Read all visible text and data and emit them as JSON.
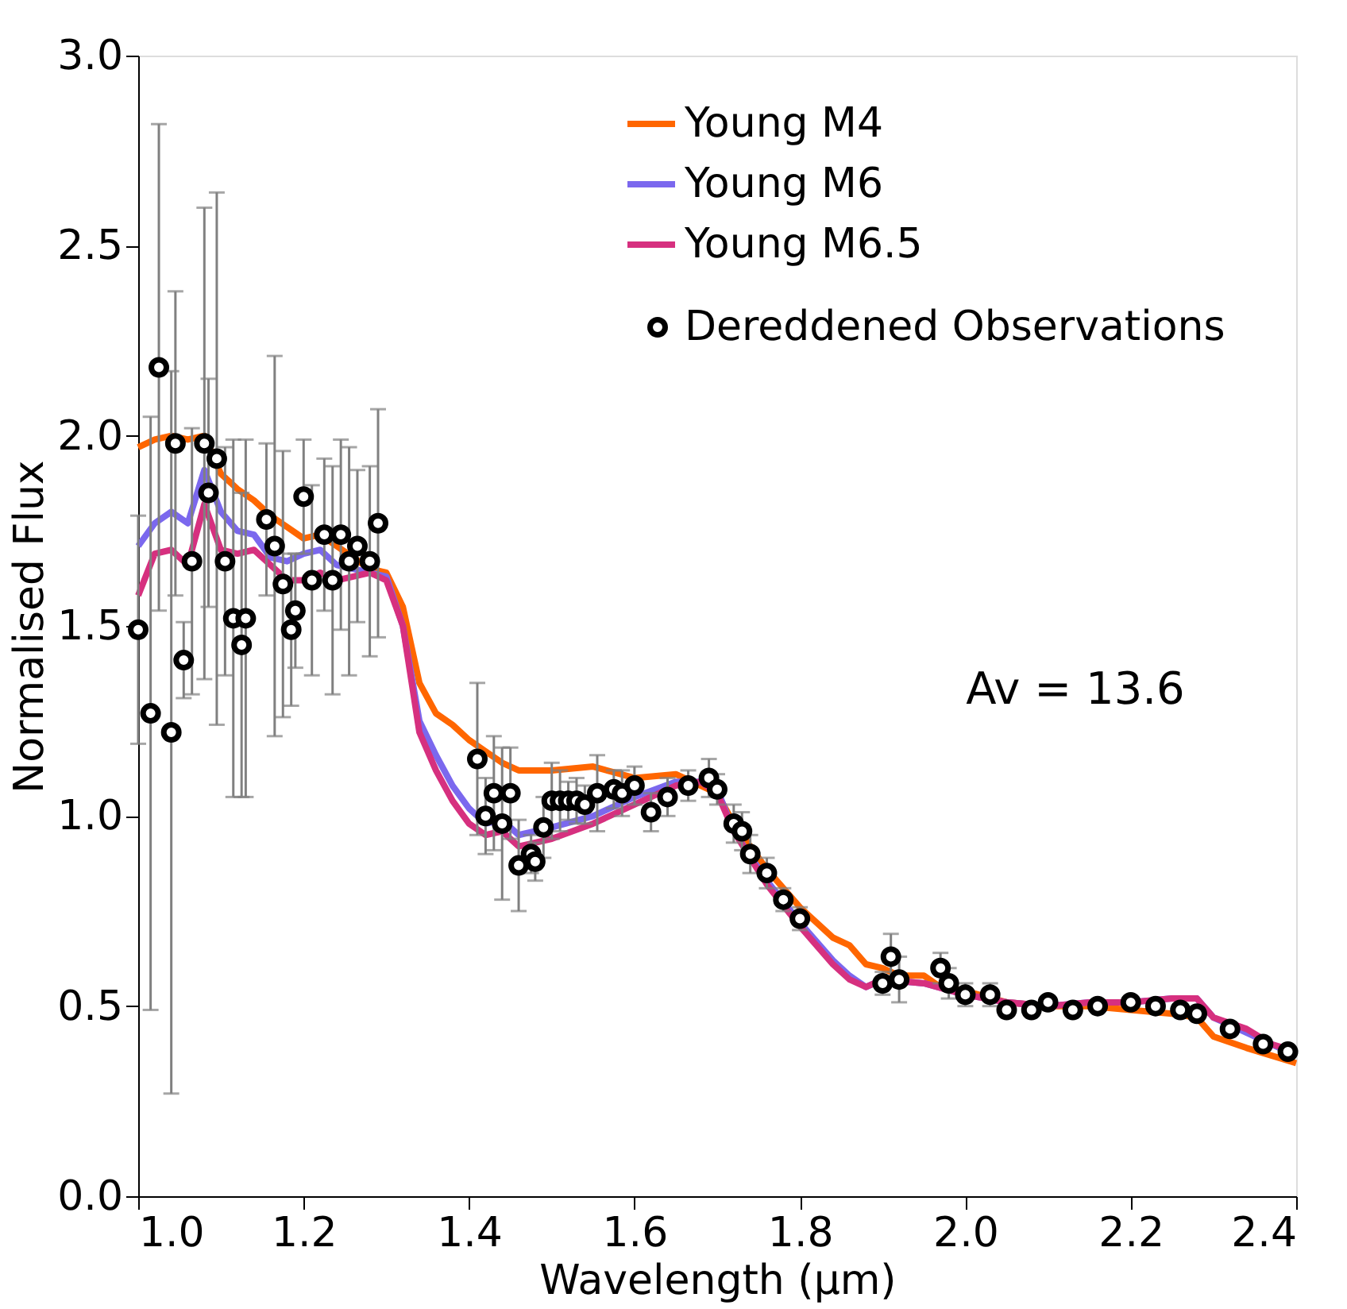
{
  "chart_data": {
    "type": "line",
    "xlabel": "Wavelength (μm)",
    "ylabel": "Normalised Flux",
    "xlim": [
      1.0,
      2.4
    ],
    "xticks": [
      {
        "value": 1,
        "label": "1.0"
      },
      1.2,
      1.4,
      1.6,
      1.8,
      {
        "value": 2,
        "label": "2.0"
      },
      2.2,
      2.4
    ],
    "ylim": [
      0.0,
      3.0
    ],
    "yticks": [
      {
        "value": 0,
        "label": "0.0"
      },
      0.5,
      {
        "value": 1,
        "label": "1.0"
      },
      1.5,
      {
        "value": 2,
        "label": "2.0"
      },
      2.5,
      {
        "value": 3,
        "label": "3.0"
      }
    ],
    "grid": false,
    "legend": "top right",
    "line_style": "solid",
    "marker": "none",
    "annotations": [
      "Av = 13.6"
    ],
    "series": [
      {
        "name": "Young M4",
        "color": "#ff6600",
        "x": [
          1.0,
          1.02,
          1.04,
          1.06,
          1.08,
          1.1,
          1.12,
          1.14,
          1.16,
          1.18,
          1.2,
          1.22,
          1.24,
          1.26,
          1.28,
          1.3,
          1.32,
          1.34,
          1.36,
          1.38,
          1.4,
          1.42,
          1.44,
          1.46,
          1.5,
          1.55,
          1.6,
          1.65,
          1.68,
          1.7,
          1.72,
          1.76,
          1.8,
          1.84,
          1.86,
          1.88,
          1.9,
          1.92,
          1.95,
          1.97,
          2.0,
          2.05,
          2.1,
          2.15,
          2.2,
          2.25,
          2.28,
          2.3,
          2.34,
          2.37,
          2.4
        ],
        "values": [
          1.97,
          1.99,
          2.0,
          1.99,
          2.0,
          1.9,
          1.86,
          1.83,
          1.79,
          1.76,
          1.73,
          1.74,
          1.71,
          1.68,
          1.65,
          1.64,
          1.55,
          1.35,
          1.27,
          1.24,
          1.2,
          1.17,
          1.14,
          1.12,
          1.12,
          1.13,
          1.1,
          1.11,
          1.08,
          1.06,
          0.98,
          0.86,
          0.76,
          0.68,
          0.66,
          0.61,
          0.6,
          0.58,
          0.58,
          0.55,
          0.54,
          0.51,
          0.5,
          0.5,
          0.49,
          0.48,
          0.47,
          0.42,
          0.39,
          0.37,
          0.35
        ]
      },
      {
        "name": "Young M6",
        "color": "#7b68ee",
        "x": [
          1.0,
          1.02,
          1.04,
          1.06,
          1.08,
          1.1,
          1.12,
          1.14,
          1.16,
          1.18,
          1.2,
          1.22,
          1.24,
          1.26,
          1.28,
          1.3,
          1.32,
          1.34,
          1.36,
          1.38,
          1.4,
          1.42,
          1.44,
          1.46,
          1.5,
          1.55,
          1.6,
          1.65,
          1.68,
          1.7,
          1.72,
          1.76,
          1.8,
          1.84,
          1.86,
          1.88,
          1.9,
          1.95,
          2.0,
          2.05,
          2.1,
          2.15,
          2.2,
          2.25,
          2.28,
          2.3,
          2.34,
          2.37,
          2.4
        ],
        "values": [
          1.71,
          1.77,
          1.8,
          1.77,
          1.91,
          1.8,
          1.75,
          1.74,
          1.68,
          1.67,
          1.69,
          1.7,
          1.66,
          1.65,
          1.64,
          1.63,
          1.5,
          1.25,
          1.16,
          1.08,
          1.02,
          0.98,
          0.99,
          0.95,
          0.97,
          1.0,
          1.05,
          1.09,
          1.09,
          1.07,
          0.96,
          0.83,
          0.72,
          0.62,
          0.58,
          0.55,
          0.57,
          0.56,
          0.53,
          0.51,
          0.5,
          0.51,
          0.51,
          0.52,
          0.52,
          0.47,
          0.43,
          0.4,
          0.37
        ]
      },
      {
        "name": "Young M6.5",
        "color": "#d6307f",
        "x": [
          1.0,
          1.02,
          1.04,
          1.06,
          1.08,
          1.1,
          1.12,
          1.14,
          1.16,
          1.18,
          1.2,
          1.22,
          1.24,
          1.26,
          1.28,
          1.3,
          1.32,
          1.34,
          1.36,
          1.38,
          1.4,
          1.42,
          1.44,
          1.46,
          1.5,
          1.55,
          1.6,
          1.65,
          1.68,
          1.7,
          1.72,
          1.76,
          1.8,
          1.84,
          1.86,
          1.88,
          1.9,
          1.95,
          2.0,
          2.05,
          2.1,
          2.15,
          2.2,
          2.25,
          2.28,
          2.3,
          2.34,
          2.37,
          2.4
        ],
        "values": [
          1.58,
          1.69,
          1.7,
          1.66,
          1.82,
          1.7,
          1.69,
          1.7,
          1.66,
          1.62,
          1.62,
          1.64,
          1.62,
          1.63,
          1.64,
          1.62,
          1.5,
          1.22,
          1.12,
          1.04,
          0.98,
          0.95,
          0.96,
          0.92,
          0.94,
          0.98,
          1.03,
          1.08,
          1.09,
          1.06,
          0.96,
          0.82,
          0.71,
          0.61,
          0.57,
          0.55,
          0.57,
          0.56,
          0.53,
          0.51,
          0.5,
          0.51,
          0.51,
          0.52,
          0.52,
          0.47,
          0.44,
          0.4,
          0.38
        ]
      },
      {
        "name": "Dereddened Observations",
        "type": "scatter",
        "marker": "circle",
        "color": "#000000",
        "x": [
          1.0,
          1.015,
          1.025,
          1.04,
          1.045,
          1.055,
          1.065,
          1.08,
          1.085,
          1.095,
          1.105,
          1.115,
          1.125,
          1.13,
          1.155,
          1.165,
          1.175,
          1.185,
          1.19,
          1.2,
          1.21,
          1.225,
          1.235,
          1.245,
          1.255,
          1.265,
          1.28,
          1.29,
          1.41,
          1.42,
          1.43,
          1.44,
          1.45,
          1.46,
          1.475,
          1.48,
          1.49,
          1.5,
          1.51,
          1.52,
          1.53,
          1.54,
          1.555,
          1.575,
          1.585,
          1.6,
          1.62,
          1.64,
          1.665,
          1.69,
          1.7,
          1.72,
          1.73,
          1.74,
          1.76,
          1.78,
          1.8,
          1.9,
          1.91,
          1.92,
          1.97,
          1.98,
          2.0,
          2.03,
          2.05,
          2.08,
          2.1,
          2.13,
          2.16,
          2.2,
          2.23,
          2.26,
          2.28,
          2.32,
          2.36,
          2.39
        ],
        "values": [
          1.49,
          1.27,
          2.18,
          1.22,
          1.98,
          1.41,
          1.67,
          1.98,
          1.85,
          1.94,
          1.67,
          1.52,
          1.45,
          1.52,
          1.78,
          1.71,
          1.61,
          1.49,
          1.54,
          1.84,
          1.62,
          1.74,
          1.62,
          1.74,
          1.67,
          1.71,
          1.67,
          1.77,
          1.15,
          1.0,
          1.06,
          0.98,
          1.06,
          0.87,
          0.9,
          0.88,
          0.97,
          1.04,
          1.04,
          1.04,
          1.04,
          1.03,
          1.06,
          1.07,
          1.06,
          1.08,
          1.01,
          1.05,
          1.08,
          1.1,
          1.07,
          0.98,
          0.96,
          0.9,
          0.85,
          0.78,
          0.73,
          0.56,
          0.63,
          0.57,
          0.6,
          0.56,
          0.53,
          0.53,
          0.49,
          0.49,
          0.51,
          0.49,
          0.5,
          0.51,
          0.5,
          0.49,
          0.48,
          0.44,
          0.4,
          0.38
        ],
        "errors": [
          0.3,
          0.78,
          0.64,
          0.95,
          0.4,
          0.1,
          0.35,
          0.62,
          0.3,
          0.7,
          0.3,
          0.47,
          0.4,
          0.47,
          0.2,
          0.5,
          0.35,
          0.2,
          0.15,
          0.15,
          0.25,
          0.2,
          0.3,
          0.25,
          0.3,
          0.2,
          0.25,
          0.3,
          0.2,
          0.1,
          0.15,
          0.2,
          0.12,
          0.12,
          0.05,
          0.05,
          0.08,
          0.1,
          0.08,
          0.05,
          0.06,
          0.05,
          0.1,
          0.05,
          0.06,
          0.05,
          0.05,
          0.05,
          0.04,
          0.05,
          0.04,
          0.05,
          0.05,
          0.05,
          0.04,
          0.03,
          0.03,
          0.03,
          0.06,
          0.06,
          0.04,
          0.04,
          0.03,
          0.03,
          null,
          null,
          null,
          null,
          null,
          null,
          null,
          null,
          null,
          null,
          null,
          null
        ]
      }
    ]
  }
}
